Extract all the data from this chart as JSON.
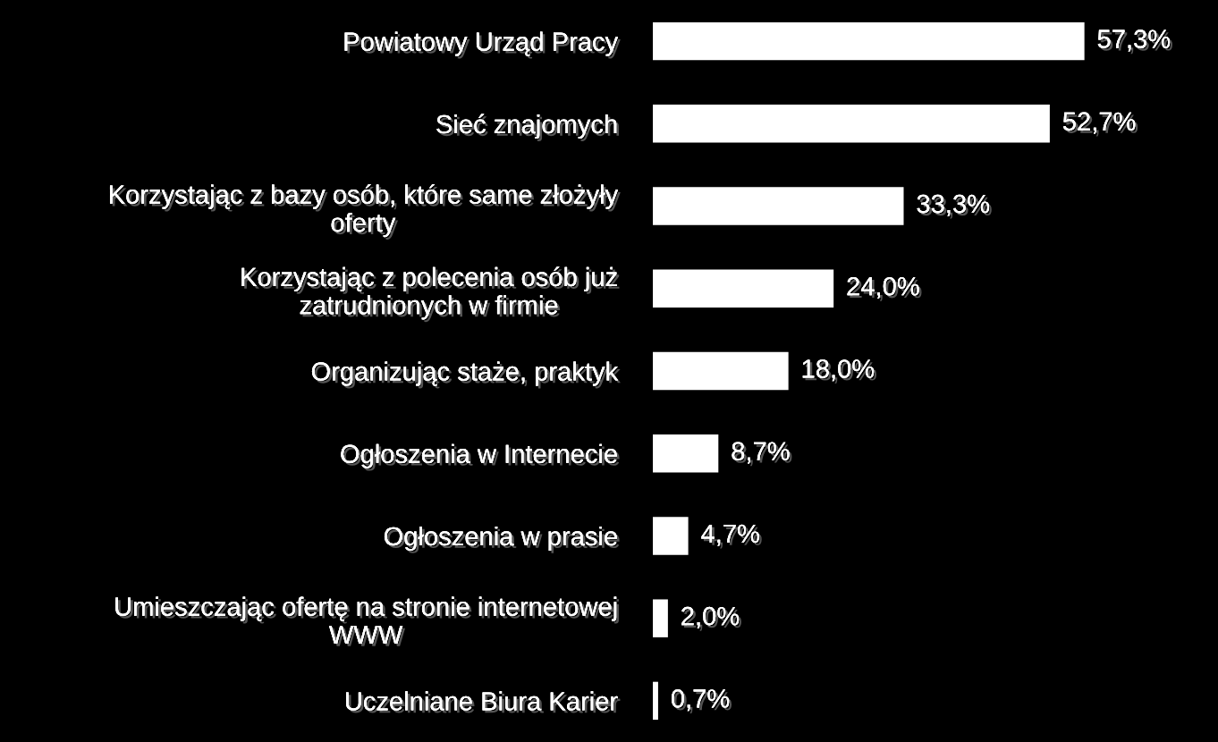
{
  "chart_data": {
    "type": "bar",
    "orientation": "horizontal",
    "categories": [
      "Powiatowy Urząd Pracy",
      "Sieć znajomych",
      "Korzystając z bazy osób, które same złożyły\noferty",
      "Korzystając z polecenia osób już\nzatrudnionych w firmie",
      "Organizując staże, praktyk",
      "Ogłoszenia w Internecie",
      "Ogłoszenia w prasie",
      "Umieszczając ofertę na stronie internetowej\nWWW",
      "Uczelniane Biura Karier"
    ],
    "values": [
      57.3,
      52.7,
      33.3,
      24.0,
      18.0,
      8.7,
      4.7,
      2.0,
      0.7
    ],
    "value_labels": [
      "57,3%",
      "52,7%",
      "33,3%",
      "24,0%",
      "18,0%",
      "8,7%",
      "4,7%",
      "2,0%",
      "0,7%"
    ],
    "color": "#ffffff",
    "grid": false,
    "legend": false
  }
}
